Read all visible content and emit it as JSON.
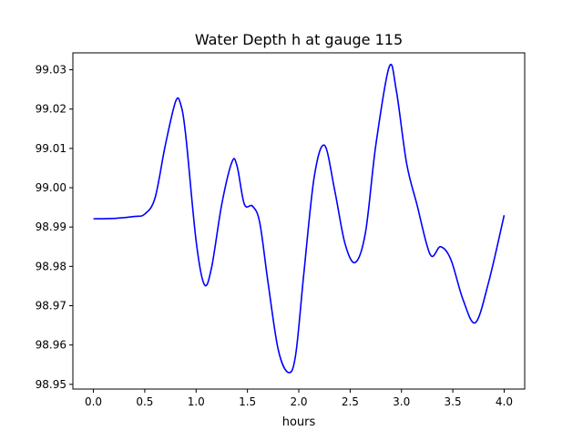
{
  "chart_data": {
    "type": "line",
    "title": "Water Depth h at gauge 115",
    "xlabel": "hours",
    "ylabel": "",
    "xlim": [
      -0.2,
      4.2
    ],
    "ylim": [
      98.9488,
      99.0343
    ],
    "xticks": [
      0.0,
      0.5,
      1.0,
      1.5,
      2.0,
      2.5,
      3.0,
      3.5,
      4.0
    ],
    "xtick_labels": [
      "0.0",
      "0.5",
      "1.0",
      "1.5",
      "2.0",
      "2.5",
      "3.0",
      "3.5",
      "4.0"
    ],
    "yticks": [
      98.95,
      98.96,
      98.97,
      98.98,
      98.99,
      99.0,
      99.01,
      99.02,
      99.03
    ],
    "ytick_labels": [
      "98.95",
      "98.96",
      "98.97",
      "98.98",
      "98.99",
      "99.00",
      "99.01",
      "99.02",
      "99.03"
    ],
    "grid": false,
    "series": [
      {
        "name": "h",
        "color": "#0000ff",
        "x": [
          0.0,
          0.2,
          0.4,
          0.5,
          0.6,
          0.7,
          0.8,
          0.85,
          0.9,
          1.0,
          1.08,
          1.15,
          1.25,
          1.35,
          1.4,
          1.47,
          1.55,
          1.62,
          1.7,
          1.8,
          1.9,
          1.97,
          2.05,
          2.15,
          2.25,
          2.35,
          2.45,
          2.55,
          2.65,
          2.75,
          2.88,
          2.95,
          3.05,
          3.15,
          3.28,
          3.38,
          3.48,
          3.6,
          3.72,
          3.85,
          4.0
        ],
        "y": [
          98.9921,
          98.9922,
          98.9927,
          98.9933,
          98.9974,
          99.0108,
          99.0219,
          99.0212,
          99.0131,
          98.9865,
          98.9754,
          98.9796,
          98.9958,
          99.0066,
          99.0054,
          98.9958,
          98.9953,
          98.9911,
          98.976,
          98.9588,
          98.953,
          98.9576,
          98.9784,
          99.0027,
          99.0108,
          98.9993,
          98.9858,
          98.981,
          98.9887,
          99.0108,
          99.0307,
          99.0247,
          99.0062,
          98.9958,
          98.983,
          98.985,
          98.9818,
          98.9715,
          98.9657,
          98.9761,
          98.993
        ]
      }
    ]
  }
}
